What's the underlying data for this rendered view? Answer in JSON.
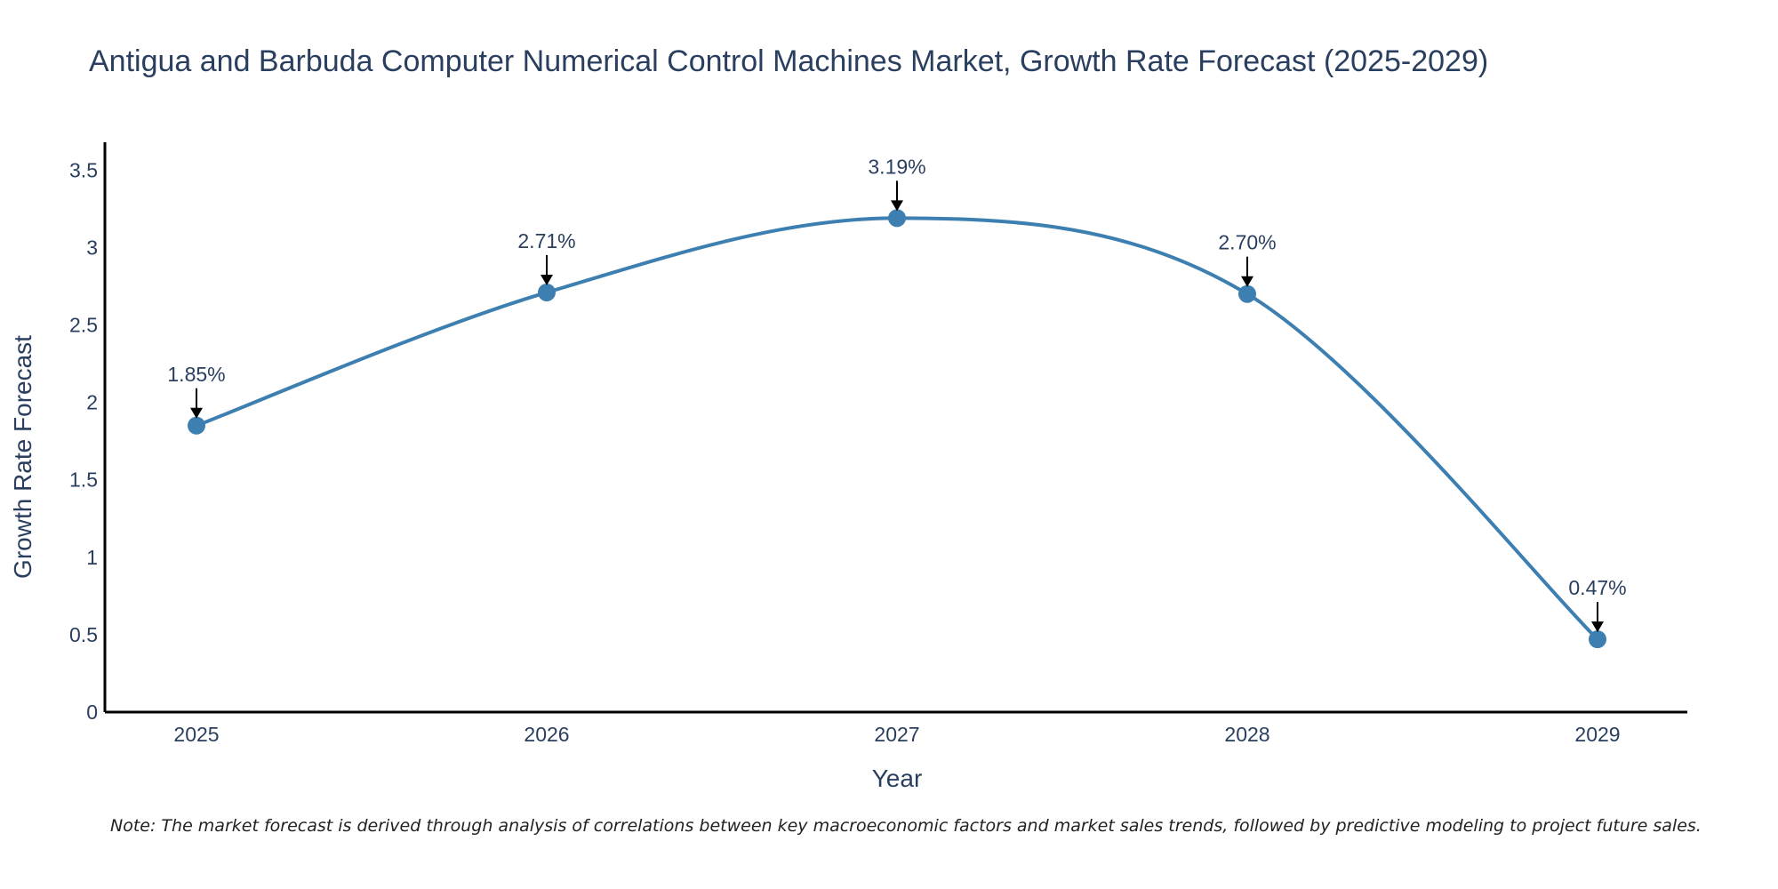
{
  "chart_data": {
    "type": "line",
    "title": "Antigua and Barbuda Computer Numerical Control Machines Market, Growth Rate Forecast (2025-2029)",
    "xlabel": "Year",
    "ylabel": "Growth Rate Forecast",
    "categories": [
      "2025",
      "2026",
      "2027",
      "2028",
      "2029"
    ],
    "series": [
      {
        "name": "Growth Rate Forecast",
        "values": [
          1.85,
          2.71,
          3.19,
          2.7,
          0.47
        ],
        "labels": [
          "1.85%",
          "2.71%",
          "3.19%",
          "2.70%",
          "0.47%"
        ],
        "color": "#3d7fb0"
      }
    ],
    "yticks": [
      0,
      0.5,
      1,
      1.5,
      2,
      2.5,
      3,
      3.5
    ],
    "ytick_labels": [
      "0",
      "0.5",
      "1",
      "1.5",
      "2",
      "2.5",
      "3",
      "3.5"
    ],
    "ylim": [
      0,
      3.68
    ],
    "grid": false,
    "line_shape": "spline"
  },
  "footnote": "Note: The market forecast is derived through analysis of correlations between key macroeconomic factors and market sales trends, followed by predictive modeling to project future sales."
}
